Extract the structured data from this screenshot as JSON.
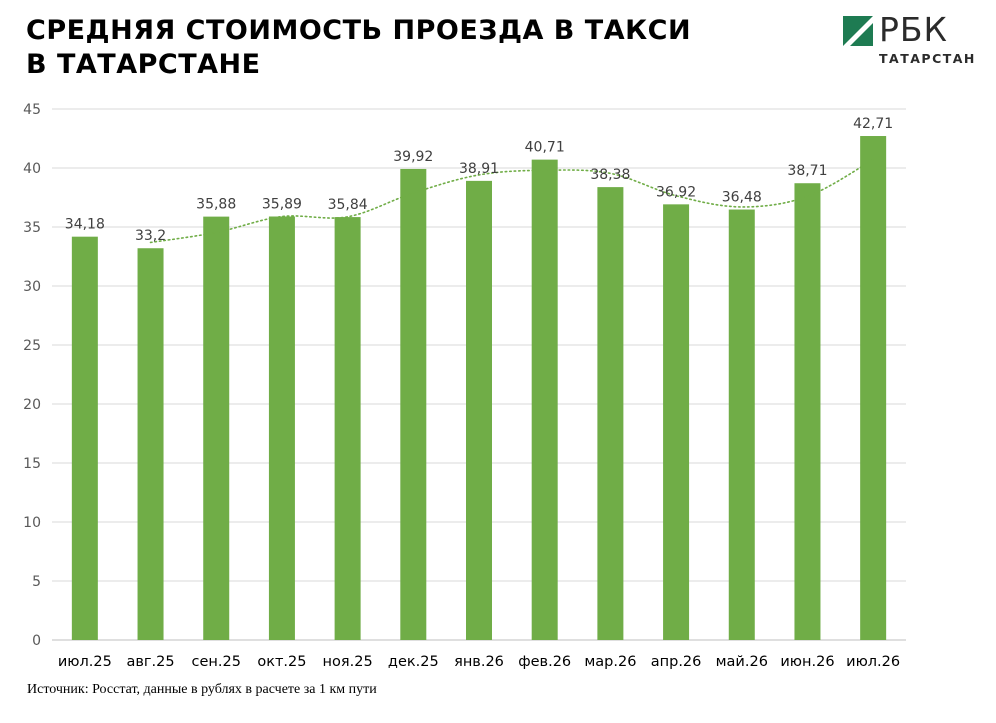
{
  "header": {
    "title_line1": "СРЕДНЯЯ СТОИМОСТЬ ПРОЕЗДА В ТАКСИ",
    "title_line2": "В ТАТАРСТАНЕ"
  },
  "logo": {
    "name": "РБК",
    "region": "ТАТАРСТАН",
    "mark_color": "#1e7b52"
  },
  "source": "Источник: Росстат, данные в рублях в расчете за 1 км пути",
  "chart_data": {
    "type": "bar",
    "title": "СРЕДНЯЯ СТОИМОСТЬ ПРОЕЗДА В ТАКСИ В ТАТАРСТАНЕ",
    "categories": [
      "июл.25",
      "авг.25",
      "сен.25",
      "окт.25",
      "ноя.25",
      "дек.25",
      "янв.26",
      "фев.26",
      "мар.26",
      "апр.26",
      "май.26",
      "июн.26",
      "июл.26"
    ],
    "series": [
      {
        "values": [
          34.18,
          33.2,
          35.88,
          35.89,
          35.84,
          39.92,
          38.91,
          40.71,
          38.38,
          36.92,
          36.48,
          38.71,
          42.71
        ],
        "labels": [
          "34,18",
          "33,2",
          "35,88",
          "35,89",
          "35,84",
          "39,92",
          "38,91",
          "40,71",
          "38,38",
          "36,92",
          "36,48",
          "38,71",
          "42,71"
        ],
        "color": "#70ad47"
      }
    ],
    "trendline": {
      "style": "dotted",
      "type": "moving-average-2",
      "color": "#70ad47"
    },
    "ylim": [
      0,
      45
    ],
    "yticks": [
      0,
      5,
      10,
      15,
      20,
      25,
      30,
      35,
      40,
      45
    ],
    "grid": true,
    "legend": "none"
  }
}
